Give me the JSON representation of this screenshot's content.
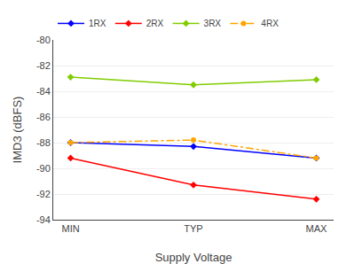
{
  "chart_data": {
    "type": "line",
    "x_label": "Supply Voltage",
    "y_label": "IMD3 (dBFS)",
    "categories": [
      "MIN",
      "TYP",
      "MAX"
    ],
    "series": [
      {
        "name": "1RX",
        "color": "#0000FF",
        "marker": "diamond",
        "line_style": "solid",
        "values": [
          -88.0,
          -88.3,
          -89.2
        ]
      },
      {
        "name": "2RX",
        "color": "#FF0000",
        "marker": "diamond",
        "line_style": "solid",
        "values": [
          -89.2,
          -91.3,
          -92.4
        ]
      },
      {
        "name": "3RX",
        "color": "#80CC00",
        "marker": "diamond",
        "line_style": "solid",
        "values": [
          -82.9,
          -83.5,
          -83.1
        ]
      },
      {
        "name": "4RX",
        "color": "#FFA500",
        "marker": "circle",
        "line_style": "dashdot",
        "values": [
          -88.0,
          -87.8,
          -89.2
        ]
      }
    ],
    "ylim": [
      -94,
      -80
    ],
    "yticks": [
      -94,
      -92,
      -90,
      -88,
      -86,
      -84,
      -82,
      -80
    ],
    "grid": true,
    "legend": "upper left"
  }
}
